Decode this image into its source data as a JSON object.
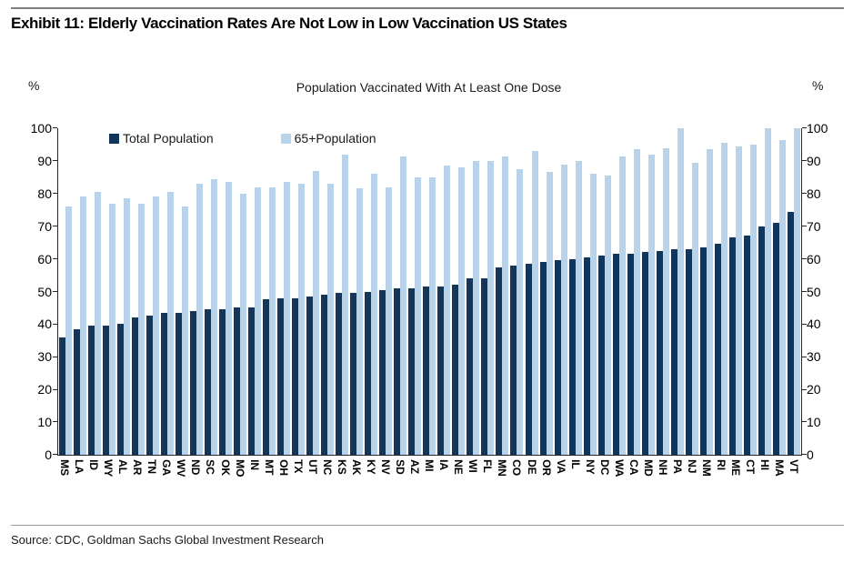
{
  "header": {
    "exhibit_title": "Exhibit 11: Elderly Vaccination Rates Are Not Low in Low Vaccination US States"
  },
  "footer": {
    "source": "Source: CDC, Goldman Sachs Global Investment Research"
  },
  "axis": {
    "unit_left": "%",
    "unit_right": "%"
  },
  "chart_data": {
    "type": "bar",
    "title": "Population Vaccinated With At Least One Dose",
    "xlabel": "",
    "ylabel": "%",
    "ylim": [
      0,
      100
    ],
    "ytick_step": 10,
    "grid": false,
    "legend_position": "top-left-inside",
    "categories": [
      "MS",
      "LA",
      "ID",
      "WY",
      "AL",
      "AR",
      "TN",
      "GA",
      "WV",
      "ND",
      "SC",
      "OK",
      "MO",
      "IN",
      "MT",
      "OH",
      "TX",
      "UT",
      "NC",
      "KS",
      "AK",
      "KY",
      "NV",
      "SD",
      "AZ",
      "MI",
      "IA",
      "NE",
      "WI",
      "FL",
      "MN",
      "CO",
      "DE",
      "OR",
      "VA",
      "IL",
      "NY",
      "DC",
      "WA",
      "CA",
      "MD",
      "NH",
      "PA",
      "NJ",
      "NM",
      "RI",
      "ME",
      "CT",
      "HI",
      "MA",
      "VT"
    ],
    "series": [
      {
        "name": "Total Population",
        "color": "#12365a",
        "values": [
          36,
          38.5,
          39.5,
          39.5,
          40,
          42,
          42.5,
          43.5,
          43.5,
          44,
          44.5,
          44.5,
          45,
          45,
          47.5,
          48,
          48,
          48.5,
          49,
          49.5,
          49.5,
          50,
          50.5,
          51,
          51,
          51.5,
          51.5,
          52,
          54,
          54,
          57.5,
          58,
          58.5,
          59,
          59.5,
          60,
          60.5,
          61,
          61.5,
          61.5,
          62,
          62.5,
          63,
          63,
          63.5,
          64.5,
          66.5,
          67,
          70,
          71,
          74.5
        ]
      },
      {
        "name": "65+Population",
        "color": "#b8d3ea",
        "values": [
          76,
          79,
          80.5,
          77,
          78.5,
          77,
          79,
          80.5,
          76,
          83,
          84.5,
          83.5,
          80,
          82,
          82,
          83.5,
          83,
          87,
          83,
          92,
          81.5,
          86,
          82,
          91.5,
          85,
          85,
          88.5,
          88,
          90,
          90,
          91.5,
          87.5,
          93,
          86.5,
          89,
          90,
          86,
          85.5,
          91.5,
          93.5,
          92,
          94,
          100,
          89.5,
          93.5,
          95.5,
          94.5,
          95,
          100,
          96.5,
          100
        ]
      }
    ]
  }
}
